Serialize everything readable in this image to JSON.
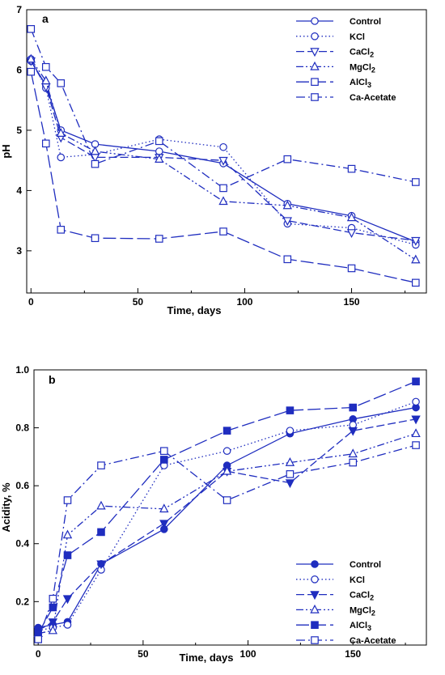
{
  "chart_data": [
    {
      "type": "line",
      "panel_label": "a",
      "xlabel": "Time, days",
      "ylabel": "pH",
      "xlim": [
        -2,
        185
      ],
      "ylim": [
        2.3,
        7
      ],
      "xticks": [
        0,
        50,
        100,
        150
      ],
      "yticks": [
        3,
        4,
        5,
        6,
        7
      ],
      "legend_position": "top-right",
      "grid": false,
      "series": [
        {
          "name": "Control",
          "name_sub": "",
          "color": "#1f2dbf",
          "dash": "solid",
          "marker": "circle",
          "filled": false,
          "x": [
            0,
            7,
            14,
            30,
            60,
            90,
            120,
            150,
            180
          ],
          "y": [
            6.15,
            5.75,
            5.0,
            4.77,
            4.65,
            4.45,
            3.78,
            3.58,
            3.15
          ]
        },
        {
          "name": "KCl",
          "name_sub": "",
          "color": "#1f2dbf",
          "dash": "dot",
          "marker": "circle",
          "filled": false,
          "x": [
            0,
            7,
            14,
            30,
            60,
            90,
            120,
            150,
            180
          ],
          "y": [
            6.18,
            5.7,
            4.55,
            4.6,
            4.85,
            4.72,
            3.45,
            3.38,
            3.1
          ]
        },
        {
          "name": "CaCl",
          "name_sub": "2",
          "color": "#1f2dbf",
          "dash": "dash",
          "marker": "triangle-down",
          "filled": false,
          "x": [
            0,
            7,
            14,
            30,
            60,
            90,
            120,
            150,
            180
          ],
          "y": [
            6.15,
            5.72,
            4.88,
            4.55,
            4.55,
            4.5,
            3.5,
            3.3,
            3.17
          ]
        },
        {
          "name": "MgCl",
          "name_sub": "2",
          "color": "#1f2dbf",
          "dash": "dashdotdot",
          "marker": "triangle-up",
          "filled": false,
          "x": [
            0,
            7,
            14,
            30,
            60,
            90,
            120,
            150,
            180
          ],
          "y": [
            6.18,
            5.82,
            4.95,
            4.65,
            4.52,
            3.82,
            3.75,
            3.55,
            2.85
          ]
        },
        {
          "name": "AlCl",
          "name_sub": "3",
          "color": "#1f2dbf",
          "dash": "longdash",
          "marker": "square",
          "filled": false,
          "x": [
            0,
            7,
            14,
            30,
            60,
            90,
            120,
            150,
            180
          ],
          "y": [
            5.97,
            4.78,
            3.35,
            3.21,
            3.2,
            3.32,
            2.86,
            2.71,
            2.47
          ]
        },
        {
          "name": "Ca-Acetate",
          "name_sub": "",
          "color": "#1f2dbf",
          "dash": "dashdot",
          "marker": "square",
          "filled": false,
          "x": [
            0,
            7,
            14,
            30,
            60,
            90,
            120,
            150,
            180
          ],
          "y": [
            6.68,
            6.05,
            5.78,
            4.44,
            4.82,
            4.04,
            4.52,
            4.36,
            4.14
          ]
        }
      ]
    },
    {
      "type": "line",
      "panel_label": "b",
      "xlabel": "Time, days",
      "ylabel": "Acidity, %",
      "xlim": [
        -2,
        185
      ],
      "ylim": [
        0.05,
        1.0
      ],
      "xticks": [
        0,
        50,
        100,
        150
      ],
      "yticks": [
        0.2,
        0.4,
        0.6,
        0.8,
        1.0
      ],
      "ytick_labels": [
        "0.2",
        "0.4",
        "0.6",
        "0.8",
        "1.0"
      ],
      "legend_position": "bottom-right",
      "grid": false,
      "series": [
        {
          "name": "Control",
          "name_sub": "",
          "color": "#1f2dbf",
          "dash": "solid",
          "marker": "circle",
          "filled": true,
          "x": [
            0,
            7,
            14,
            30,
            60,
            90,
            120,
            150,
            180
          ],
          "y": [
            0.11,
            0.12,
            0.13,
            0.33,
            0.45,
            0.67,
            0.78,
            0.83,
            0.87
          ]
        },
        {
          "name": "KCl",
          "name_sub": "",
          "color": "#1f2dbf",
          "dash": "dot",
          "marker": "circle",
          "filled": false,
          "x": [
            0,
            7,
            14,
            30,
            60,
            90,
            120,
            150,
            180
          ],
          "y": [
            0.1,
            0.11,
            0.12,
            0.31,
            0.67,
            0.72,
            0.79,
            0.81,
            0.89
          ]
        },
        {
          "name": "CaCl",
          "name_sub": "2",
          "color": "#1f2dbf",
          "dash": "dash",
          "marker": "triangle-down",
          "filled": true,
          "x": [
            0,
            7,
            14,
            30,
            60,
            90,
            120,
            150,
            180
          ],
          "y": [
            0.1,
            0.13,
            0.21,
            0.33,
            0.47,
            0.65,
            0.61,
            0.79,
            0.83
          ]
        },
        {
          "name": "MgCl",
          "name_sub": "2",
          "color": "#1f2dbf",
          "dash": "dashdotdot",
          "marker": "triangle-up",
          "filled": false,
          "x": [
            0,
            7,
            14,
            30,
            60,
            90,
            120,
            150,
            180
          ],
          "y": [
            0.09,
            0.1,
            0.43,
            0.53,
            0.52,
            0.65,
            0.68,
            0.71,
            0.78
          ]
        },
        {
          "name": "AlCl",
          "name_sub": "3",
          "color": "#1f2dbf",
          "dash": "longdash",
          "marker": "square",
          "filled": true,
          "x": [
            0,
            7,
            14,
            30,
            60,
            90,
            120,
            150,
            180
          ],
          "y": [
            0.09,
            0.18,
            0.36,
            0.44,
            0.69,
            0.79,
            0.86,
            0.87,
            0.96
          ]
        },
        {
          "name": "Ca-Acetate",
          "name_sub": "",
          "color": "#1f2dbf",
          "dash": "dashdot",
          "marker": "square",
          "filled": false,
          "x": [
            0,
            7,
            14,
            30,
            60,
            90,
            120,
            150,
            180
          ],
          "y": [
            0.07,
            0.21,
            0.55,
            0.67,
            0.72,
            0.55,
            0.64,
            0.68,
            0.74
          ]
        }
      ]
    }
  ]
}
